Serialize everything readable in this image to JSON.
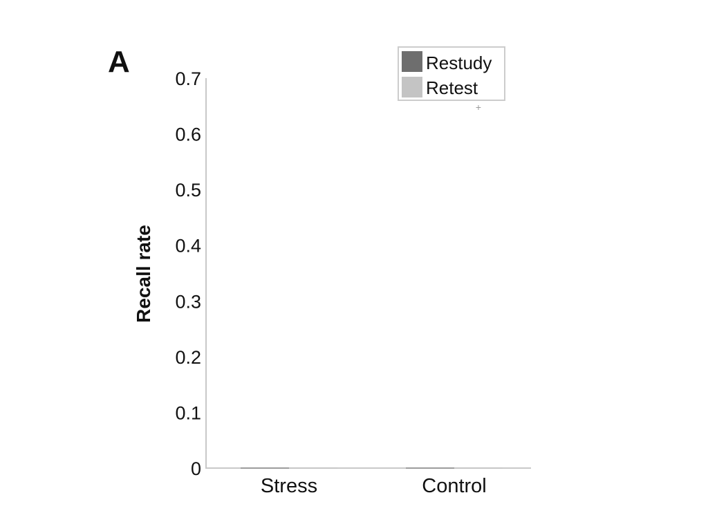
{
  "figure": {
    "panel_label": "A"
  },
  "chart_data": {
    "type": "bar",
    "title": "",
    "xlabel": "",
    "ylabel": "Recall rate",
    "categories": [
      "Stress",
      "Control"
    ],
    "series": [
      {
        "name": "Restudy",
        "color": "#6e6e6e",
        "values": [
          0,
          0
        ]
      },
      {
        "name": "Retest",
        "color": "#c4c4c4",
        "values": [
          0,
          0
        ]
      }
    ],
    "ylim": [
      0,
      0.7
    ],
    "yticks": [
      "0",
      "0.1",
      "0.2",
      "0.3",
      "0.4",
      "0.5",
      "0.6",
      "0.7"
    ],
    "grid": false,
    "legend": "top-right",
    "annotations": [
      "+"
    ]
  }
}
